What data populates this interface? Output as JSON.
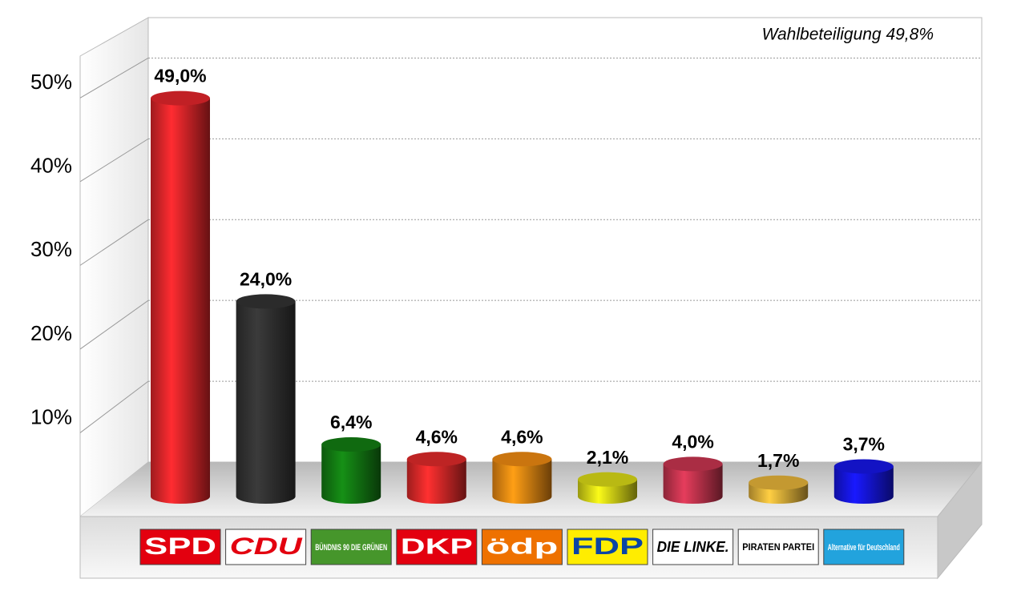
{
  "chart_data": {
    "type": "bar",
    "annotation": "Wahlbeteiligung 49,8%",
    "categories": [
      "SPD",
      "CDU",
      "BÜNDNIS 90 DIE GRÜNEN",
      "DKP",
      "ödp",
      "FDP",
      "DIE LINKE.",
      "PIRATEN PARTEI",
      "Alternative für Deutschland"
    ],
    "values": [
      49.0,
      24.0,
      6.4,
      4.6,
      4.6,
      2.1,
      4.0,
      1.7,
      3.7
    ],
    "value_labels": [
      "49,0%",
      "24,0%",
      "6,4%",
      "4,6%",
      "4,6%",
      "2,1%",
      "4,0%",
      "1,7%",
      "3,7%"
    ],
    "colors": [
      "#e3262b",
      "#333333",
      "#137d13",
      "#e02a2a",
      "#ee8a12",
      "#dada16",
      "#c83550",
      "#e6b43a",
      "#1616e6"
    ],
    "ylim": [
      0,
      55
    ],
    "yticks": [
      {
        "value": 10,
        "label": "10%"
      },
      {
        "value": 20,
        "label": "20%"
      },
      {
        "value": 30,
        "label": "30%"
      },
      {
        "value": 40,
        "label": "40%"
      },
      {
        "value": 50,
        "label": "50%"
      }
    ],
    "grid": true
  }
}
